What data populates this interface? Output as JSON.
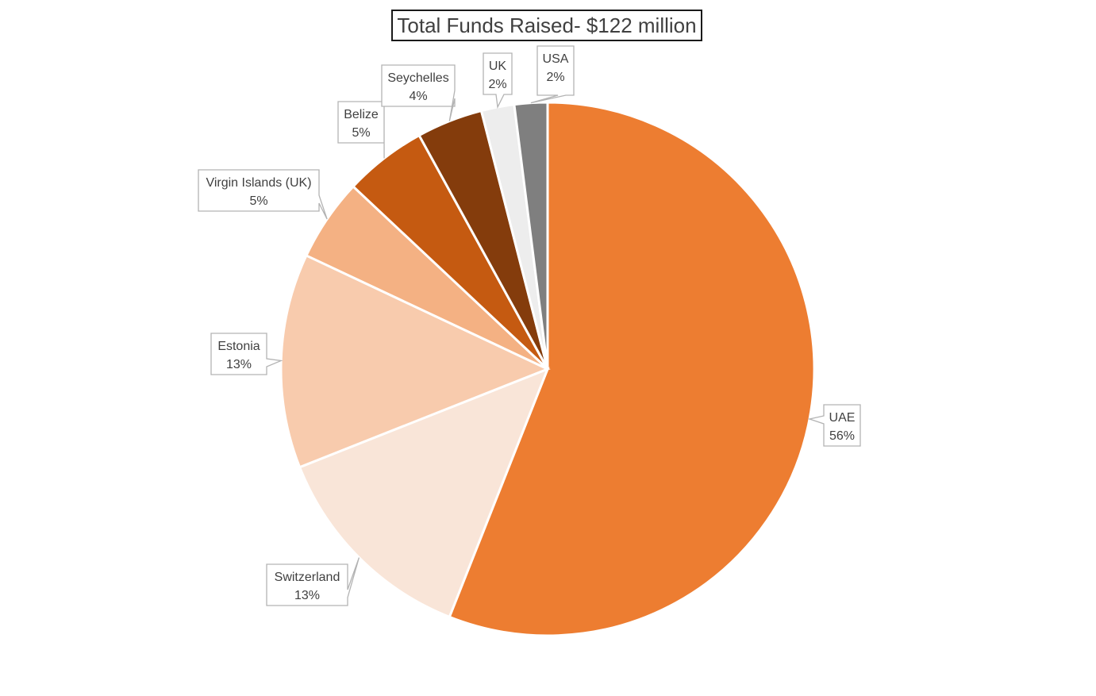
{
  "chart_data": {
    "type": "pie",
    "title": "Total Funds Raised- $122 million",
    "slices": [
      {
        "label": "UAE",
        "pct_label": "56%",
        "value": 56,
        "color": "#ED7D31"
      },
      {
        "label": "Switzerland",
        "pct_label": "13%",
        "value": 13,
        "color": "#F9E5D8"
      },
      {
        "label": "Estonia",
        "pct_label": "13%",
        "value": 13,
        "color": "#F8CBAD"
      },
      {
        "label": "Virgin Islands (UK)",
        "pct_label": "5%",
        "value": 5,
        "color": "#F4B183"
      },
      {
        "label": "Belize",
        "pct_label": "5%",
        "value": 5,
        "color": "#C55A11"
      },
      {
        "label": "Seychelles",
        "pct_label": "4%",
        "value": 4,
        "color": "#843C0C"
      },
      {
        "label": "UK",
        "pct_label": "2%",
        "value": 2,
        "color": "#EDEDED"
      },
      {
        "label": "USA",
        "pct_label": "2%",
        "value": 2,
        "color": "#7F7F7F"
      }
    ],
    "legend": "none",
    "data_labels": "callouts"
  }
}
